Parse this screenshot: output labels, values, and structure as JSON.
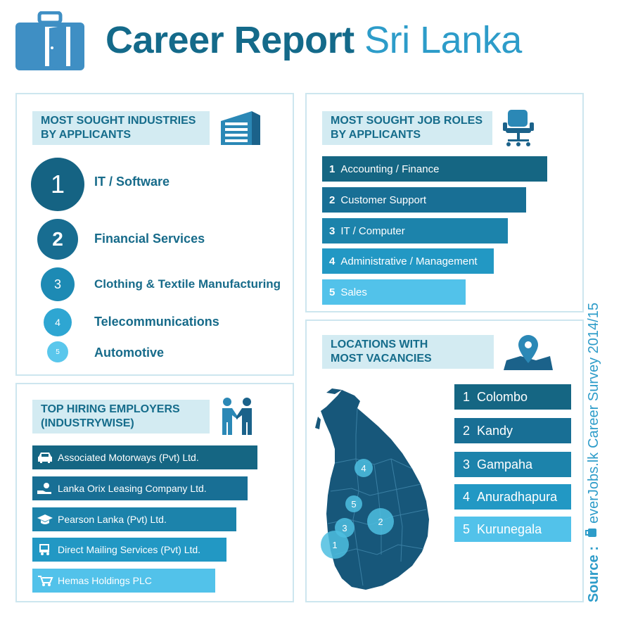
{
  "header": {
    "title_main": "Career Report",
    "title_accent": "Sri Lanka",
    "logo_icon": "briefcase-icon"
  },
  "industries": {
    "heading": "MOST  SOUGHT INDUSTRIES\nBY APPLICANTS",
    "icon": "building-icon",
    "items": [
      {
        "rank": "1",
        "label": "IT / Software"
      },
      {
        "rank": "2",
        "label": "Financial Services"
      },
      {
        "rank": "3",
        "label": "Clothing & Textile Manufacturing"
      },
      {
        "rank": "4",
        "label": "Telecommunications"
      },
      {
        "rank": "5",
        "label": "Automotive"
      }
    ]
  },
  "job_roles": {
    "heading": "MOST  SOUGHT JOB ROLES\nBY APPLICANTS",
    "icon": "office-chair-icon",
    "items": [
      {
        "rank": "1",
        "label": "Accounting / Finance"
      },
      {
        "rank": "2",
        "label": "Customer Support"
      },
      {
        "rank": "3",
        "label": "IT / Computer"
      },
      {
        "rank": "4",
        "label": "Administrative / Management"
      },
      {
        "rank": "5",
        "label": "Sales"
      }
    ]
  },
  "employers": {
    "heading": "TOP HIRING EMPLOYERS\n(INDUSTRYWISE)",
    "icon": "handshake-icon",
    "items": [
      {
        "label": "Associated Motorways (Pvt) Ltd.",
        "icon": "car-icon"
      },
      {
        "label": "Lanka Orix Leasing Company Ltd.",
        "icon": "money-hand-icon"
      },
      {
        "label": "Pearson Lanka (Pvt) Ltd.",
        "icon": "graduation-cap-icon"
      },
      {
        "label": "Direct Mailing Services (Pvt) Ltd.",
        "icon": "mail-truck-icon"
      },
      {
        "label": "Hemas Holdings PLC",
        "icon": "cart-icon"
      }
    ]
  },
  "locations": {
    "heading": "LOCATIONS WITH\nMOST VACANCIES",
    "icon": "map-pin-icon",
    "items": [
      {
        "rank": "1",
        "label": "Colombo"
      },
      {
        "rank": "2",
        "label": "Kandy"
      },
      {
        "rank": "3",
        "label": "Gampaha"
      },
      {
        "rank": "4",
        "label": "Anuradhapura"
      },
      {
        "rank": "5",
        "label": "Kurunegala"
      }
    ]
  },
  "source": {
    "prefix": "Source :",
    "brand": "everJobs.lk",
    "suffix": "Career Survey 2014/15"
  },
  "colors": {
    "dark": "#156a8a",
    "mid": "#1a87ad",
    "light": "#4fc0e6",
    "panel_border": "#cde6ef"
  }
}
